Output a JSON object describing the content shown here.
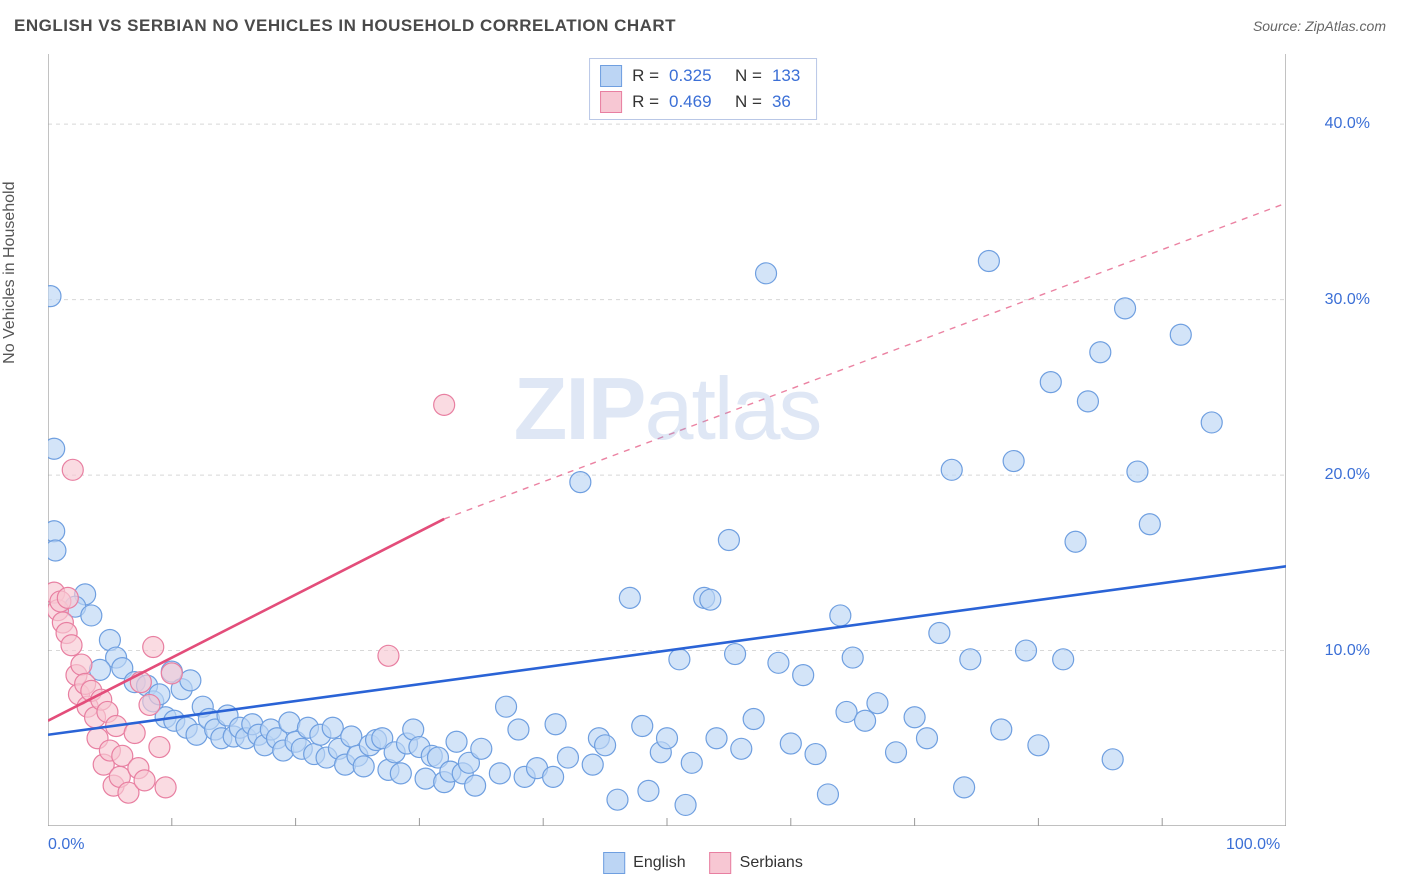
{
  "title": "ENGLISH VS SERBIAN NO VEHICLES IN HOUSEHOLD CORRELATION CHART",
  "source": "Source: ZipAtlas.com",
  "ylabel": "No Vehicles in Household",
  "watermark": {
    "zip": "ZIP",
    "atlas": "atlas"
  },
  "chart": {
    "type": "scatter",
    "background_color": "#ffffff",
    "grid_color": "#d8d8d8",
    "axis_color": "#9a9a9a",
    "tick_color": "#9a9a9a",
    "xlim": [
      0,
      100
    ],
    "ylim": [
      0,
      44
    ],
    "ytick_values": [
      10,
      20,
      30,
      40
    ],
    "ytick_labels": [
      "10.0%",
      "20.0%",
      "30.0%",
      "40.0%"
    ],
    "ytick_label_color": "#3b6fd6",
    "xtick_minor_step": 10,
    "xtick_labels": [
      {
        "value": 0,
        "label": "0.0%"
      },
      {
        "value": 100,
        "label": "100.0%"
      }
    ],
    "xtick_label_color": "#3b6fd6",
    "marker_radius": 10.5,
    "marker_stroke_width": 1.2,
    "trend_line_width": 2.6,
    "series": [
      {
        "name": "English",
        "fill": "#bcd5f4",
        "stroke": "#6f9fe0",
        "line_color": "#2a63d6",
        "trend": {
          "x1": 0,
          "y1": 5.2,
          "x2": 100,
          "y2": 14.8
        },
        "legend_R": "0.325",
        "legend_N": "133",
        "points": [
          [
            0.2,
            30.2
          ],
          [
            0.5,
            21.5
          ],
          [
            0.5,
            16.8
          ],
          [
            0.6,
            15.7
          ],
          [
            3,
            13.2
          ],
          [
            2.2,
            12.5
          ],
          [
            3.5,
            12.0
          ],
          [
            5,
            10.6
          ],
          [
            5.5,
            9.6
          ],
          [
            4.2,
            8.9
          ],
          [
            6,
            9.0
          ],
          [
            7,
            8.2
          ],
          [
            8,
            8.0
          ],
          [
            8.5,
            7.1
          ],
          [
            9,
            7.5
          ],
          [
            9.5,
            6.2
          ],
          [
            10,
            8.8
          ],
          [
            10.2,
            6.0
          ],
          [
            10.8,
            7.8
          ],
          [
            11.2,
            5.6
          ],
          [
            11.5,
            8.3
          ],
          [
            12,
            5.2
          ],
          [
            12.5,
            6.8
          ],
          [
            13,
            6.1
          ],
          [
            13.5,
            5.5
          ],
          [
            14,
            5.0
          ],
          [
            14.5,
            6.3
          ],
          [
            15,
            5.1
          ],
          [
            15.5,
            5.6
          ],
          [
            16,
            5.0
          ],
          [
            16.5,
            5.8
          ],
          [
            17,
            5.2
          ],
          [
            17.5,
            4.6
          ],
          [
            18,
            5.5
          ],
          [
            18.5,
            5.0
          ],
          [
            19,
            4.3
          ],
          [
            19.5,
            5.9
          ],
          [
            20,
            4.8
          ],
          [
            20.5,
            4.4
          ],
          [
            21,
            5.6
          ],
          [
            21.5,
            4.1
          ],
          [
            22,
            5.2
          ],
          [
            22.5,
            3.9
          ],
          [
            23,
            5.6
          ],
          [
            23.5,
            4.4
          ],
          [
            24,
            3.5
          ],
          [
            24.5,
            5.1
          ],
          [
            25,
            4.0
          ],
          [
            25.5,
            3.4
          ],
          [
            26,
            4.6
          ],
          [
            26.5,
            4.9
          ],
          [
            27,
            5.0
          ],
          [
            27.5,
            3.2
          ],
          [
            28,
            4.2
          ],
          [
            28.5,
            3.0
          ],
          [
            29,
            4.7
          ],
          [
            29.5,
            5.5
          ],
          [
            30,
            4.5
          ],
          [
            30.5,
            2.7
          ],
          [
            31,
            4.0
          ],
          [
            31.5,
            3.9
          ],
          [
            32,
            2.5
          ],
          [
            32.5,
            3.1
          ],
          [
            33,
            4.8
          ],
          [
            33.5,
            3.0
          ],
          [
            34,
            3.6
          ],
          [
            34.5,
            2.3
          ],
          [
            35,
            4.4
          ],
          [
            36.5,
            3.0
          ],
          [
            37,
            6.8
          ],
          [
            38,
            5.5
          ],
          [
            38.5,
            2.8
          ],
          [
            39.5,
            3.3
          ],
          [
            40.8,
            2.8
          ],
          [
            41,
            5.8
          ],
          [
            42,
            3.9
          ],
          [
            43,
            19.6
          ],
          [
            44,
            3.5
          ],
          [
            44.5,
            5.0
          ],
          [
            45,
            4.6
          ],
          [
            46,
            1.5
          ],
          [
            47,
            13.0
          ],
          [
            48,
            5.7
          ],
          [
            48.5,
            2.0
          ],
          [
            49.5,
            4.2
          ],
          [
            50,
            5.0
          ],
          [
            51,
            9.5
          ],
          [
            51.5,
            1.2
          ],
          [
            52,
            3.6
          ],
          [
            53,
            13.0
          ],
          [
            53.5,
            12.9
          ],
          [
            54,
            5.0
          ],
          [
            55,
            16.3
          ],
          [
            55.5,
            9.8
          ],
          [
            56,
            4.4
          ],
          [
            57,
            6.1
          ],
          [
            58,
            31.5
          ],
          [
            59,
            9.3
          ],
          [
            60,
            4.7
          ],
          [
            61,
            8.6
          ],
          [
            62,
            4.1
          ],
          [
            63,
            1.8
          ],
          [
            64,
            12.0
          ],
          [
            64.5,
            6.5
          ],
          [
            65,
            9.6
          ],
          [
            66,
            6.0
          ],
          [
            67,
            7.0
          ],
          [
            68.5,
            4.2
          ],
          [
            70,
            6.2
          ],
          [
            71,
            5.0
          ],
          [
            72,
            11.0
          ],
          [
            73,
            20.3
          ],
          [
            74,
            2.2
          ],
          [
            74.5,
            9.5
          ],
          [
            76,
            32.2
          ],
          [
            77,
            5.5
          ],
          [
            78,
            20.8
          ],
          [
            79,
            10.0
          ],
          [
            80,
            4.6
          ],
          [
            81,
            25.3
          ],
          [
            82,
            9.5
          ],
          [
            83,
            16.2
          ],
          [
            84,
            24.2
          ],
          [
            85,
            27.0
          ],
          [
            86,
            3.8
          ],
          [
            87,
            29.5
          ],
          [
            88,
            20.2
          ],
          [
            89,
            17.2
          ],
          [
            91.5,
            28.0
          ],
          [
            94,
            23.0
          ]
        ]
      },
      {
        "name": "Serbians",
        "fill": "#f7c7d3",
        "stroke": "#e87fa1",
        "line_color": "#e34d7a",
        "trend": {
          "x1": 0,
          "y1": 6.0,
          "x2": 32,
          "y2": 17.5
        },
        "trend_dash": {
          "x1": 32,
          "y1": 17.5,
          "x2": 100,
          "y2": 35.5
        },
        "legend_R": "0.469",
        "legend_N": "36",
        "points": [
          [
            0.5,
            13.3
          ],
          [
            0.8,
            12.3
          ],
          [
            1.0,
            12.8
          ],
          [
            1.2,
            11.6
          ],
          [
            1.5,
            11.0
          ],
          [
            1.6,
            13.0
          ],
          [
            1.9,
            10.3
          ],
          [
            2.0,
            20.3
          ],
          [
            2.3,
            8.6
          ],
          [
            2.5,
            7.5
          ],
          [
            2.7,
            9.2
          ],
          [
            3.0,
            8.1
          ],
          [
            3.2,
            6.8
          ],
          [
            3.5,
            7.7
          ],
          [
            3.8,
            6.2
          ],
          [
            4.0,
            5.0
          ],
          [
            4.3,
            7.2
          ],
          [
            4.5,
            3.5
          ],
          [
            4.8,
            6.5
          ],
          [
            5.0,
            4.3
          ],
          [
            5.3,
            2.3
          ],
          [
            5.5,
            5.7
          ],
          [
            5.8,
            2.8
          ],
          [
            6.0,
            4.0
          ],
          [
            6.5,
            1.9
          ],
          [
            7.0,
            5.3
          ],
          [
            7.3,
            3.3
          ],
          [
            7.5,
            8.2
          ],
          [
            7.8,
            2.6
          ],
          [
            8.2,
            6.9
          ],
          [
            8.5,
            10.2
          ],
          [
            9.0,
            4.5
          ],
          [
            9.5,
            2.2
          ],
          [
            10.0,
            8.7
          ],
          [
            27.5,
            9.7
          ],
          [
            32.0,
            24.0
          ]
        ]
      }
    ]
  },
  "legend_top": {
    "R_label": "R =",
    "N_label": "N ="
  },
  "legend_bottom": [
    {
      "label": "English",
      "fill": "#bcd5f4",
      "stroke": "#6f9fe0"
    },
    {
      "label": "Serbians",
      "fill": "#f7c7d3",
      "stroke": "#e87fa1"
    }
  ]
}
